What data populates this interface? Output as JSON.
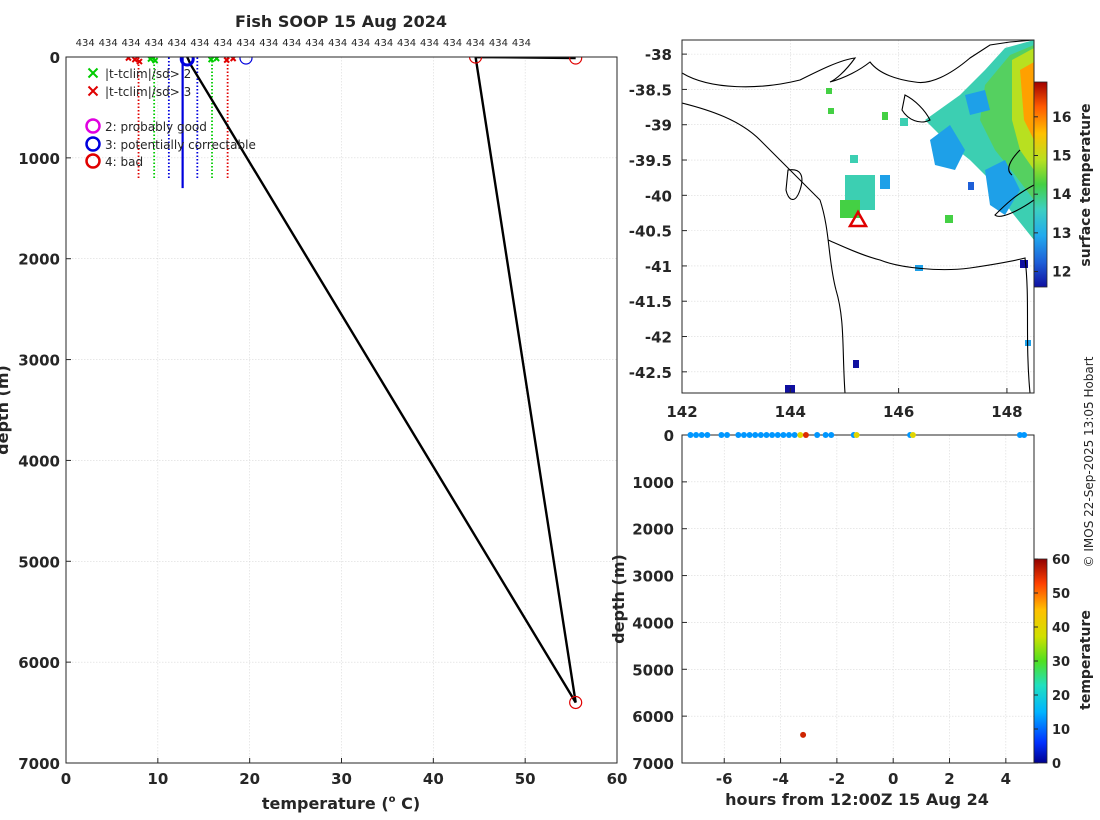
{
  "copyright": "© IMOS 22-Sep-2025 13:05 Hobart",
  "colors": {
    "good_x": "#00cc00",
    "bad_x": "#e00000",
    "probably_good": "#e000e0",
    "correctable": "#0000dd",
    "bad": "#e00000",
    "profile_line": "#000000"
  },
  "chart_data": [
    {
      "type": "line",
      "title": "Fish SOOP 15 Aug 2024",
      "xlabel": "temperature (",
      "xlabel_sup": "o",
      "xlabel_end": " C)",
      "ylabel": "depth (m)",
      "xlim": [
        0,
        60
      ],
      "ylim": [
        7000,
        0
      ],
      "xticks": [
        "0",
        "10",
        "20",
        "30",
        "40",
        "50",
        "60"
      ],
      "yticks": [
        "0",
        "1000",
        "2000",
        "3000",
        "4000",
        "5000",
        "6000",
        "7000"
      ],
      "grid": true,
      "top_labels": [
        "434",
        "434",
        "434",
        "434",
        "434",
        "434",
        "434",
        "434",
        "434",
        "434",
        "434",
        "434",
        "434",
        "434",
        "434",
        "434",
        "434",
        "434",
        "434",
        "434"
      ],
      "top_label_temps": [
        1,
        3.5,
        6,
        8.5,
        11,
        13.5,
        16,
        18.5,
        21,
        23.5,
        26,
        28.5,
        31,
        33.5,
        36,
        38.5,
        41,
        43.5,
        46,
        48.5
      ],
      "legend": [
        {
          "label": "|t-tclim|/sd> 2",
          "marker": "x",
          "color": "#00cc00"
        },
        {
          "label": "|t-tclim|/sd> 3",
          "marker": "x",
          "color": "#e00000"
        },
        {
          "label": "2: probably good",
          "marker": "o",
          "color": "#e000e0"
        },
        {
          "label": "3: potentially correctable",
          "marker": "o",
          "color": "#0000dd"
        },
        {
          "label": "4: bad",
          "marker": "o",
          "color": "#e00000"
        }
      ],
      "profile_line": [
        [
          13.2,
          0
        ],
        [
          13.4,
          40
        ],
        [
          13.6,
          80
        ],
        [
          55.5,
          6400
        ],
        [
          44.6,
          0
        ],
        [
          55.5,
          10
        ]
      ],
      "dotted_profiles": [
        {
          "color": "#e00000",
          "points": [
            [
              7.9,
              1200
            ],
            [
              7.9,
              0
            ]
          ]
        },
        {
          "color": "#00cc00",
          "points": [
            [
              9.6,
              1200
            ],
            [
              9.6,
              0
            ]
          ]
        },
        {
          "color": "#0000dd",
          "points": [
            [
              11.2,
              1200
            ],
            [
              11.2,
              0
            ]
          ]
        },
        {
          "color": "#0000dd",
          "points": [
            [
              14.3,
              1200
            ],
            [
              14.3,
              0
            ]
          ]
        },
        {
          "color": "#00cc00",
          "points": [
            [
              15.9,
              1200
            ],
            [
              15.9,
              0
            ]
          ]
        },
        {
          "color": "#e00000",
          "points": [
            [
              17.6,
              1200
            ],
            [
              17.6,
              0
            ]
          ]
        }
      ],
      "solid_profile": {
        "color": "#0000dd",
        "points": [
          [
            12.7,
            1300
          ],
          [
            12.7,
            0
          ]
        ]
      },
      "surface_x": [
        {
          "color": "#e00000",
          "t": 6.8,
          "d": 10
        },
        {
          "color": "#e00000",
          "t": 7.5,
          "d": 25
        },
        {
          "color": "#e00000",
          "t": 8.0,
          "d": 45
        },
        {
          "color": "#00cc00",
          "t": 9.2,
          "d": 20
        },
        {
          "color": "#00cc00",
          "t": 9.7,
          "d": 35
        },
        {
          "color": "#00cc00",
          "t": 15.8,
          "d": 25
        },
        {
          "color": "#00cc00",
          "t": 16.4,
          "d": 15
        },
        {
          "color": "#e00000",
          "t": 17.5,
          "d": 30
        },
        {
          "color": "#e00000",
          "t": 18.2,
          "d": 15
        }
      ],
      "circles": [
        {
          "color": "#0000dd",
          "t": 13.2,
          "d": 20,
          "size": "large"
        },
        {
          "color": "#0000dd",
          "t": 19.6,
          "d": 10,
          "size": "small"
        },
        {
          "color": "#e00000",
          "t": 44.6,
          "d": 0,
          "size": "small"
        },
        {
          "color": "#e00000",
          "t": 55.5,
          "d": 10,
          "size": "small"
        },
        {
          "color": "#e00000",
          "t": 55.5,
          "d": 6400,
          "size": "small"
        }
      ]
    },
    {
      "type": "heatmap",
      "xlim": [
        142,
        148.5
      ],
      "ylim": [
        -42.8,
        -37.8
      ],
      "xticks": [
        "142",
        "144",
        "146",
        "148"
      ],
      "yticks": [
        "-38",
        "-38.5",
        "-39",
        "-39.5",
        "-40",
        "-40.5",
        "-41",
        "-41.5",
        "-42",
        "-42.5"
      ],
      "colorbar_label": "surface temperature",
      "colorbar_ticks": [
        "12",
        "13",
        "14",
        "15",
        "16"
      ],
      "colorbar_range": [
        11.6,
        16.9
      ],
      "marker": {
        "lon": 145.25,
        "lat": -40.35,
        "shape": "triangle",
        "color": "#e00000"
      }
    },
    {
      "type": "scatter",
      "xlabel": "hours from 12:00Z 15 Aug 24",
      "ylabel": "depth (m)",
      "xlim": [
        -7.5,
        5
      ],
      "ylim": [
        7000,
        0
      ],
      "xticks": [
        "-6",
        "-4",
        "-2",
        "0",
        "2",
        "4"
      ],
      "yticks": [
        "0",
        "1000",
        "2000",
        "3000",
        "4000",
        "5000",
        "6000",
        "7000"
      ],
      "colorbar_label": "temperature",
      "colorbar_ticks": [
        "0",
        "10",
        "20",
        "30",
        "40",
        "50",
        "60"
      ],
      "colorbar_range": [
        0,
        60
      ],
      "points": [
        [
          -7.2,
          0,
          13
        ],
        [
          -7.0,
          0,
          13
        ],
        [
          -6.8,
          0,
          13
        ],
        [
          -6.6,
          0,
          13
        ],
        [
          -6.1,
          0,
          13
        ],
        [
          -5.9,
          0,
          13
        ],
        [
          -5.5,
          0,
          13
        ],
        [
          -5.3,
          0,
          13
        ],
        [
          -5.1,
          0,
          13
        ],
        [
          -4.9,
          0,
          13
        ],
        [
          -4.7,
          0,
          13
        ],
        [
          -4.5,
          0,
          13
        ],
        [
          -4.3,
          0,
          13
        ],
        [
          -4.1,
          0,
          13
        ],
        [
          -3.9,
          0,
          13
        ],
        [
          -3.7,
          0,
          13
        ],
        [
          -3.5,
          0,
          13
        ],
        [
          -3.3,
          0,
          40
        ],
        [
          -3.1,
          0,
          55
        ],
        [
          -2.7,
          0,
          13
        ],
        [
          -2.4,
          0,
          13
        ],
        [
          -2.2,
          0,
          13
        ],
        [
          -1.4,
          0,
          13
        ],
        [
          -1.3,
          0,
          40
        ],
        [
          0.6,
          0,
          13
        ],
        [
          0.7,
          0,
          40
        ],
        [
          4.5,
          0,
          13
        ],
        [
          4.65,
          0,
          13
        ],
        [
          -3.2,
          6400,
          56
        ]
      ]
    }
  ]
}
